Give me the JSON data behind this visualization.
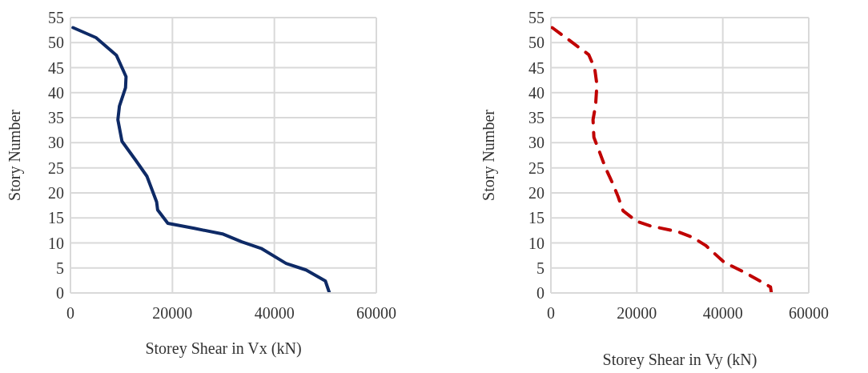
{
  "chart_data": [
    {
      "type": "line",
      "xlabel": "Storey Shear in Vx (kN)",
      "ylabel": "Story Number",
      "xlim": [
        0,
        60000
      ],
      "xticks": [
        0,
        20000,
        40000,
        60000
      ],
      "ylim": [
        0,
        55
      ],
      "yticks": [
        0,
        5,
        10,
        15,
        20,
        25,
        30,
        35,
        40,
        45,
        50,
        55
      ],
      "grid": true,
      "marker": "none",
      "line_style": "solid",
      "series": [
        {
          "color": "#0e2a66",
          "x": [
            500,
            5000,
            9000,
            10900,
            10800,
            9600,
            9300,
            10100,
            12800,
            15000,
            16900,
            17100,
            19100,
            24300,
            29800,
            33600,
            37400,
            42300,
            46200,
            50000,
            50800
          ],
          "values": [
            53,
            51,
            47.5,
            43.2,
            41,
            37.3,
            34.6,
            30.3,
            26.5,
            23.3,
            18.2,
            16.6,
            13.9,
            12.9,
            11.8,
            10.2,
            8.9,
            5.9,
            4.6,
            2.4,
            0
          ]
        }
      ]
    },
    {
      "type": "line",
      "xlabel": "Storey Shear in Vy (kN)",
      "ylabel": "Story Number",
      "xlim": [
        0,
        60000
      ],
      "xticks": [
        0,
        20000,
        40000,
        60000
      ],
      "ylim": [
        0,
        55
      ],
      "yticks": [
        0,
        5,
        10,
        15,
        20,
        25,
        30,
        35,
        40,
        45,
        50,
        55
      ],
      "grid": true,
      "marker": "none",
      "line_style": "dashed",
      "series": [
        {
          "color": "#c00000",
          "x": [
            300,
            8800,
            10200,
            10700,
            10400,
            9800,
            10000,
            11300,
            12600,
            14300,
            15700,
            16200,
            16800,
            20000,
            23100,
            29700,
            33000,
            36000,
            40100,
            41800,
            45100,
            47800,
            51100,
            51300
          ],
          "values": [
            53,
            47.6,
            44.8,
            41.6,
            37.5,
            34.6,
            31.1,
            28.2,
            25.2,
            22,
            19.1,
            17.8,
            16.4,
            14.3,
            13.4,
            12.2,
            11.1,
            9.5,
            6.3,
            5.5,
            4.1,
            2.8,
            1.2,
            0
          ]
        }
      ]
    }
  ]
}
